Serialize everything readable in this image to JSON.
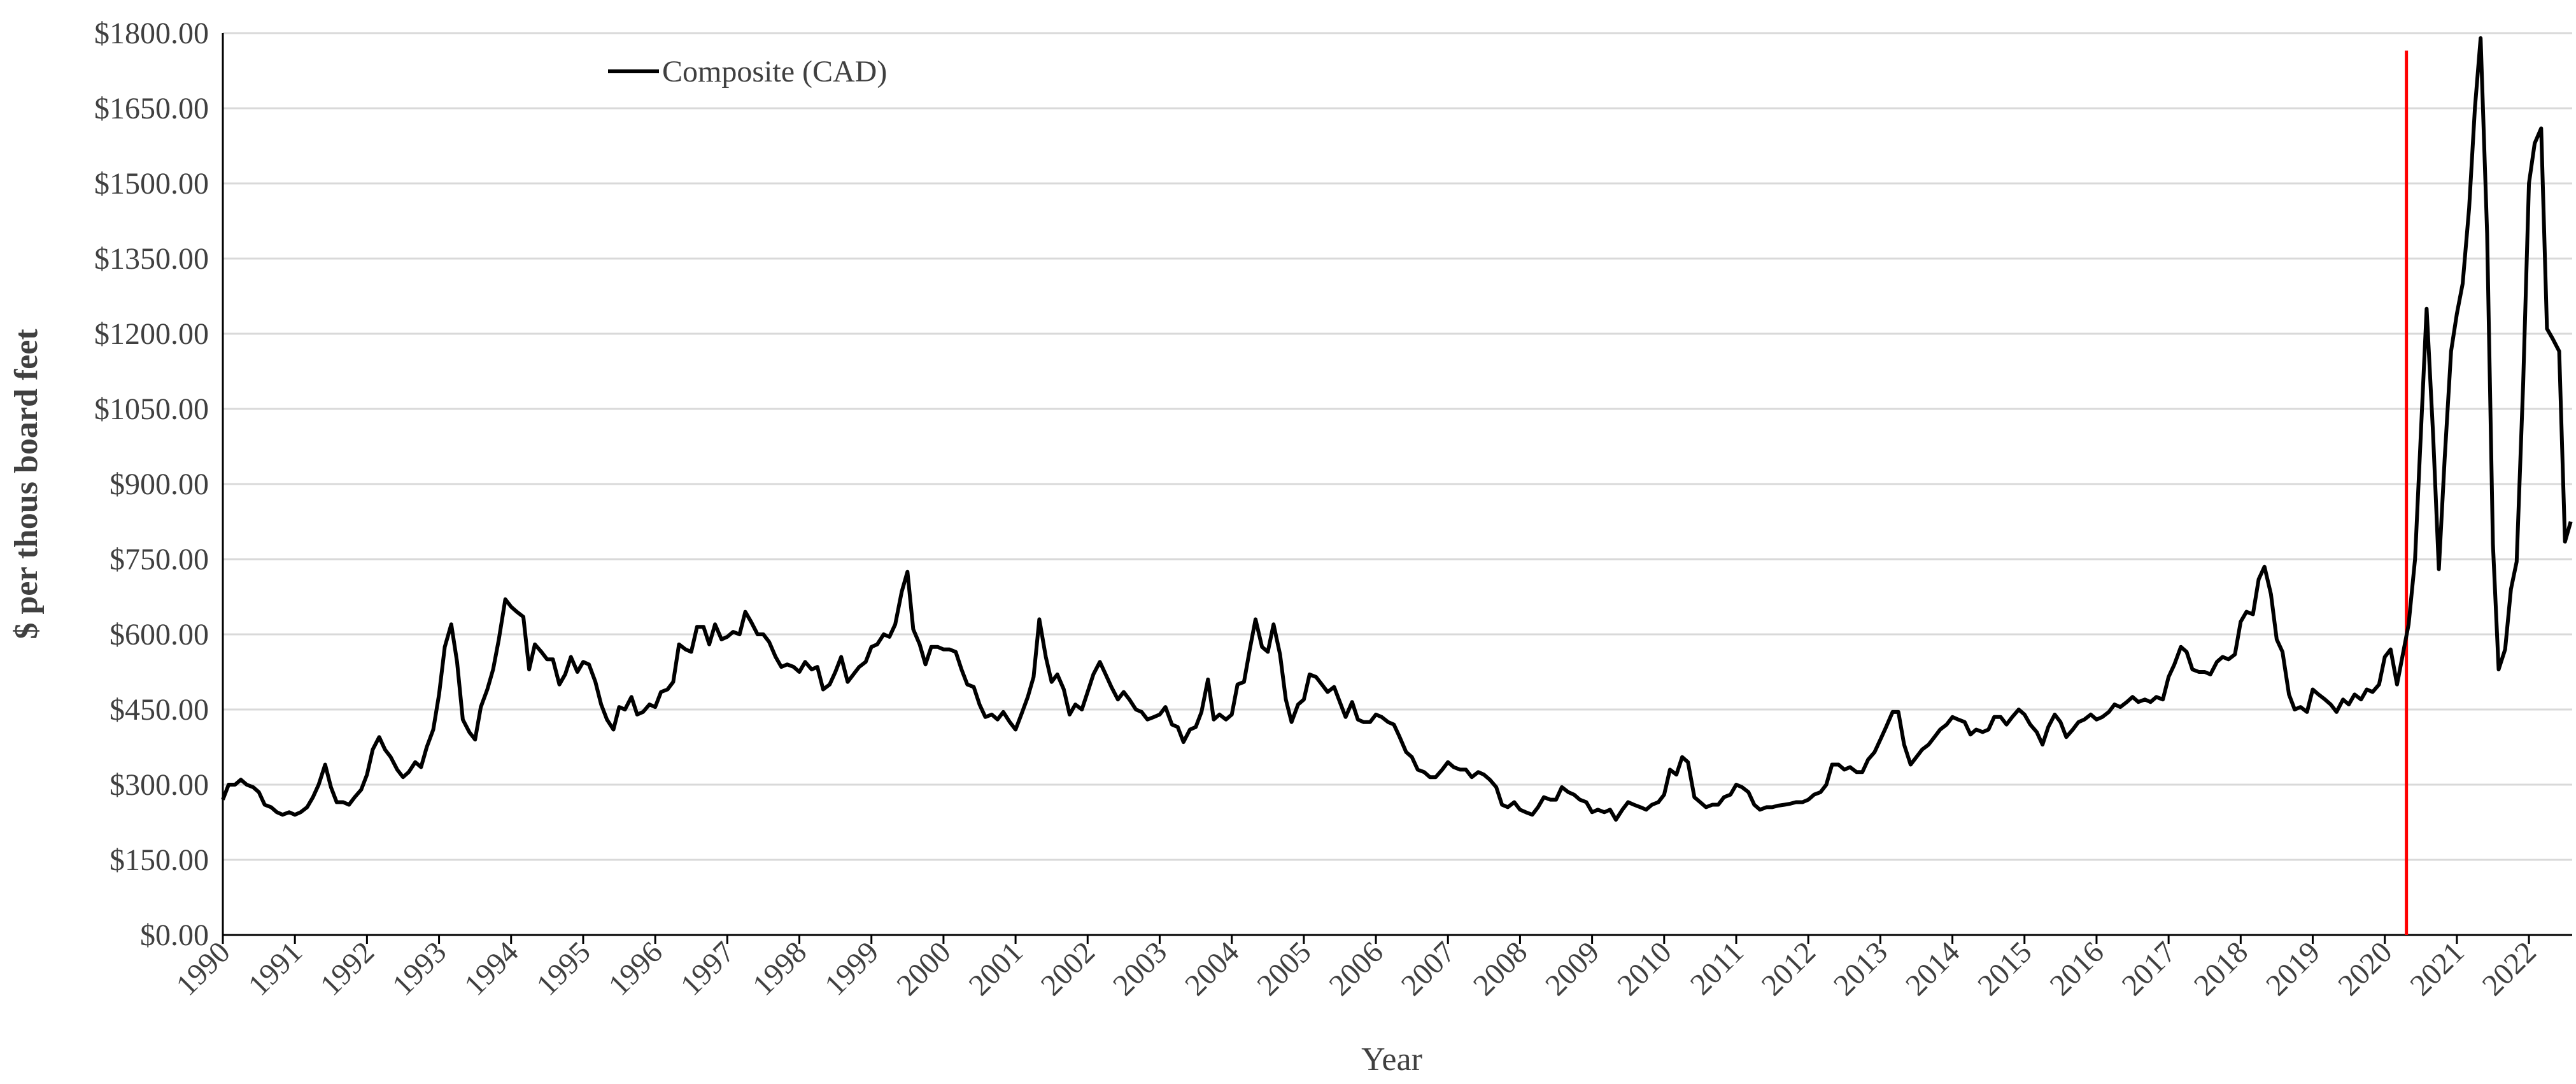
{
  "chart_data": {
    "type": "line",
    "x_label": "Year",
    "y_label": "$ per thous board feet",
    "series": [
      {
        "name": "Composite (CAD)",
        "color": "#000000",
        "x": [
          1990,
          1990.08,
          1990.17,
          1990.25,
          1990.33,
          1990.42,
          1990.5,
          1990.58,
          1990.67,
          1990.75,
          1990.83,
          1990.92,
          1991,
          1991.08,
          1991.17,
          1991.25,
          1991.33,
          1991.42,
          1991.5,
          1991.58,
          1991.67,
          1991.75,
          1991.83,
          1991.92,
          1992,
          1992.08,
          1992.17,
          1992.25,
          1992.33,
          1992.42,
          1992.5,
          1992.58,
          1992.67,
          1992.75,
          1992.83,
          1992.92,
          1993,
          1993.08,
          1993.17,
          1993.25,
          1993.33,
          1993.42,
          1993.5,
          1993.58,
          1993.67,
          1993.75,
          1993.83,
          1993.92,
          1994,
          1994.08,
          1994.17,
          1994.25,
          1994.33,
          1994.42,
          1994.5,
          1994.58,
          1994.67,
          1994.75,
          1994.83,
          1994.92,
          1995,
          1995.08,
          1995.17,
          1995.25,
          1995.33,
          1995.42,
          1995.5,
          1995.58,
          1995.67,
          1995.75,
          1995.83,
          1995.92,
          1996,
          1996.08,
          1996.17,
          1996.25,
          1996.33,
          1996.42,
          1996.5,
          1996.58,
          1996.67,
          1996.75,
          1996.83,
          1996.92,
          1997,
          1997.08,
          1997.17,
          1997.25,
          1997.33,
          1997.42,
          1997.5,
          1997.58,
          1997.67,
          1997.75,
          1997.83,
          1997.92,
          1998,
          1998.08,
          1998.17,
          1998.25,
          1998.33,
          1998.42,
          1998.5,
          1998.58,
          1998.67,
          1998.75,
          1998.83,
          1998.92,
          1999,
          1999.08,
          1999.17,
          1999.25,
          1999.33,
          1999.42,
          1999.5,
          1999.58,
          1999.67,
          1999.75,
          1999.83,
          1999.92,
          2000,
          2000.08,
          2000.17,
          2000.25,
          2000.33,
          2000.42,
          2000.5,
          2000.58,
          2000.67,
          2000.75,
          2000.83,
          2000.92,
          2001,
          2001.08,
          2001.17,
          2001.25,
          2001.33,
          2001.42,
          2001.5,
          2001.58,
          2001.67,
          2001.75,
          2001.83,
          2001.92,
          2002,
          2002.08,
          2002.17,
          2002.25,
          2002.33,
          2002.42,
          2002.5,
          2002.58,
          2002.67,
          2002.75,
          2002.83,
          2002.92,
          2003,
          2003.08,
          2003.17,
          2003.25,
          2003.33,
          2003.42,
          2003.5,
          2003.58,
          2003.67,
          2003.75,
          2003.83,
          2003.92,
          2004,
          2004.08,
          2004.17,
          2004.25,
          2004.33,
          2004.42,
          2004.5,
          2004.58,
          2004.67,
          2004.75,
          2004.83,
          2004.92,
          2005,
          2005.08,
          2005.17,
          2005.25,
          2005.33,
          2005.42,
          2005.5,
          2005.58,
          2005.67,
          2005.75,
          2005.83,
          2005.92,
          2006,
          2006.08,
          2006.17,
          2006.25,
          2006.33,
          2006.42,
          2006.5,
          2006.58,
          2006.67,
          2006.75,
          2006.83,
          2006.92,
          2007,
          2007.08,
          2007.17,
          2007.25,
          2007.33,
          2007.42,
          2007.5,
          2007.58,
          2007.67,
          2007.75,
          2007.83,
          2007.92,
          2008,
          2008.08,
          2008.17,
          2008.25,
          2008.33,
          2008.42,
          2008.5,
          2008.58,
          2008.67,
          2008.75,
          2008.83,
          2008.92,
          2009,
          2009.08,
          2009.17,
          2009.25,
          2009.33,
          2009.42,
          2009.5,
          2009.58,
          2009.67,
          2009.75,
          2009.83,
          2009.92,
          2010,
          2010.08,
          2010.17,
          2010.25,
          2010.33,
          2010.42,
          2010.5,
          2010.58,
          2010.67,
          2010.75,
          2010.83,
          2010.92,
          2011,
          2011.08,
          2011.17,
          2011.25,
          2011.33,
          2011.42,
          2011.5,
          2011.58,
          2011.67,
          2011.75,
          2011.83,
          2011.92,
          2012,
          2012.08,
          2012.17,
          2012.25,
          2012.33,
          2012.42,
          2012.5,
          2012.58,
          2012.67,
          2012.75,
          2012.83,
          2012.92,
          2013,
          2013.08,
          2013.17,
          2013.25,
          2013.33,
          2013.42,
          2013.5,
          2013.58,
          2013.67,
          2013.75,
          2013.83,
          2013.92,
          2014,
          2014.08,
          2014.17,
          2014.25,
          2014.33,
          2014.42,
          2014.5,
          2014.58,
          2014.67,
          2014.75,
          2014.83,
          2014.92,
          2015,
          2015.08,
          2015.17,
          2015.25,
          2015.33,
          2015.42,
          2015.5,
          2015.58,
          2015.67,
          2015.75,
          2015.83,
          2015.92,
          2016,
          2016.08,
          2016.17,
          2016.25,
          2016.33,
          2016.42,
          2016.5,
          2016.58,
          2016.67,
          2016.75,
          2016.83,
          2016.92,
          2017,
          2017.08,
          2017.17,
          2017.25,
          2017.33,
          2017.42,
          2017.5,
          2017.58,
          2017.67,
          2017.75,
          2017.83,
          2017.92,
          2018,
          2018.08,
          2018.17,
          2018.25,
          2018.33,
          2018.42,
          2018.5,
          2018.58,
          2018.67,
          2018.75,
          2018.83,
          2018.92,
          2019,
          2019.08,
          2019.17,
          2019.25,
          2019.33,
          2019.42,
          2019.5,
          2019.58,
          2019.67,
          2019.75,
          2019.83,
          2019.92,
          2020,
          2020.08,
          2020.17,
          2020.25,
          2020.33,
          2020.42,
          2020.5,
          2020.58,
          2020.67,
          2020.75,
          2020.83,
          2020.92,
          2021,
          2021.08,
          2021.17,
          2021.25,
          2021.33,
          2021.42,
          2021.5,
          2021.58,
          2021.67,
          2021.75,
          2021.83,
          2021.92,
          2022,
          2022.08,
          2022.17,
          2022.25,
          2022.33,
          2022.42,
          2022.5,
          2022.58
        ],
        "values": [
          270,
          300,
          300,
          310,
          300,
          295,
          285,
          260,
          255,
          245,
          240,
          245,
          240,
          245,
          255,
          275,
          300,
          340,
          295,
          265,
          265,
          260,
          275,
          290,
          320,
          370,
          395,
          370,
          355,
          330,
          315,
          325,
          345,
          335,
          375,
          410,
          480,
          575,
          620,
          545,
          430,
          405,
          390,
          455,
          490,
          530,
          590,
          670,
          655,
          645,
          635,
          530,
          580,
          565,
          550,
          550,
          500,
          520,
          555,
          525,
          545,
          540,
          505,
          460,
          430,
          410,
          455,
          450,
          475,
          440,
          445,
          460,
          455,
          485,
          490,
          505,
          580,
          570,
          565,
          615,
          615,
          580,
          620,
          590,
          595,
          605,
          600,
          645,
          625,
          600,
          600,
          585,
          555,
          535,
          540,
          535,
          525,
          545,
          530,
          535,
          490,
          500,
          525,
          555,
          505,
          520,
          535,
          545,
          575,
          580,
          600,
          595,
          620,
          685,
          725,
          610,
          580,
          540,
          575,
          575,
          570,
          570,
          565,
          530,
          500,
          495,
          460,
          435,
          440,
          430,
          445,
          425,
          410,
          440,
          475,
          515,
          630,
          555,
          505,
          520,
          490,
          440,
          460,
          450,
          485,
          520,
          545,
          520,
          495,
          470,
          485,
          470,
          450,
          445,
          430,
          435,
          440,
          455,
          420,
          415,
          385,
          410,
          415,
          445,
          510,
          430,
          440,
          430,
          440,
          500,
          505,
          570,
          630,
          575,
          565,
          620,
          560,
          470,
          425,
          460,
          470,
          520,
          515,
          500,
          485,
          495,
          465,
          435,
          465,
          430,
          425,
          425,
          440,
          435,
          425,
          420,
          395,
          365,
          355,
          330,
          325,
          315,
          315,
          330,
          345,
          335,
          330,
          330,
          315,
          325,
          320,
          310,
          295,
          260,
          255,
          265,
          250,
          245,
          240,
          255,
          275,
          270,
          270,
          295,
          285,
          280,
          270,
          265,
          245,
          250,
          245,
          250,
          230,
          250,
          265,
          260,
          255,
          250,
          260,
          265,
          280,
          330,
          320,
          355,
          345,
          275,
          265,
          255,
          260,
          260,
          275,
          280,
          300,
          295,
          285,
          260,
          250,
          255,
          255,
          258,
          260,
          262,
          265,
          265,
          270,
          280,
          285,
          300,
          340,
          340,
          330,
          335,
          325,
          325,
          350,
          365,
          390,
          415,
          445,
          445,
          380,
          340,
          355,
          370,
          380,
          395,
          410,
          420,
          435,
          430,
          425,
          400,
          410,
          405,
          410,
          435,
          435,
          420,
          435,
          450,
          440,
          420,
          405,
          380,
          415,
          440,
          425,
          395,
          410,
          425,
          430,
          440,
          430,
          435,
          445,
          460,
          455,
          465,
          475,
          465,
          470,
          465,
          475,
          470,
          515,
          540,
          575,
          565,
          530,
          525,
          525,
          520,
          545,
          555,
          550,
          560,
          625,
          645,
          640,
          710,
          735,
          680,
          590,
          565,
          480,
          450,
          455,
          445,
          490,
          480,
          470,
          460,
          445,
          470,
          460,
          480,
          470,
          490,
          485,
          500,
          555,
          570,
          500,
          560,
          620,
          750,
          1000,
          1250,
          1000,
          730,
          950,
          1165,
          1240,
          1300,
          1450,
          1650,
          1790,
          1400,
          780,
          530,
          570,
          690,
          745,
          1100,
          1500,
          1580,
          1610,
          1210,
          1190,
          1165,
          785,
          825
        ]
      }
    ],
    "xlim": [
      1990,
      2022.6
    ],
    "xticks": [
      1990,
      1991,
      1992,
      1993,
      1994,
      1995,
      1996,
      1997,
      1998,
      1999,
      2000,
      2001,
      2002,
      2003,
      2004,
      2005,
      2006,
      2007,
      2008,
      2009,
      2010,
      2011,
      2012,
      2013,
      2014,
      2015,
      2016,
      2017,
      2018,
      2019,
      2020,
      2021,
      2022
    ],
    "ylim": [
      0,
      1800
    ],
    "yticks": [
      {
        "value": 0,
        "label": "$0.00"
      },
      {
        "value": 150,
        "label": "$150.00"
      },
      {
        "value": 300,
        "label": "$300.00"
      },
      {
        "value": 450,
        "label": "$450.00"
      },
      {
        "value": 600,
        "label": "$600.00"
      },
      {
        "value": 750,
        "label": "$750.00"
      },
      {
        "value": 900,
        "label": "$900.00"
      },
      {
        "value": 1050,
        "label": "$1050.00"
      },
      {
        "value": 1200,
        "label": "$1200.00"
      },
      {
        "value": 1350,
        "label": "$1350.00"
      },
      {
        "value": 1500,
        "label": "$1500.00"
      },
      {
        "value": 1650,
        "label": "$1650.00"
      },
      {
        "value": 1800,
        "label": "$1800.00"
      }
    ],
    "grid": true,
    "vline": {
      "x": 2020.3,
      "ymax": 1765,
      "color": "#ff0000"
    }
  }
}
